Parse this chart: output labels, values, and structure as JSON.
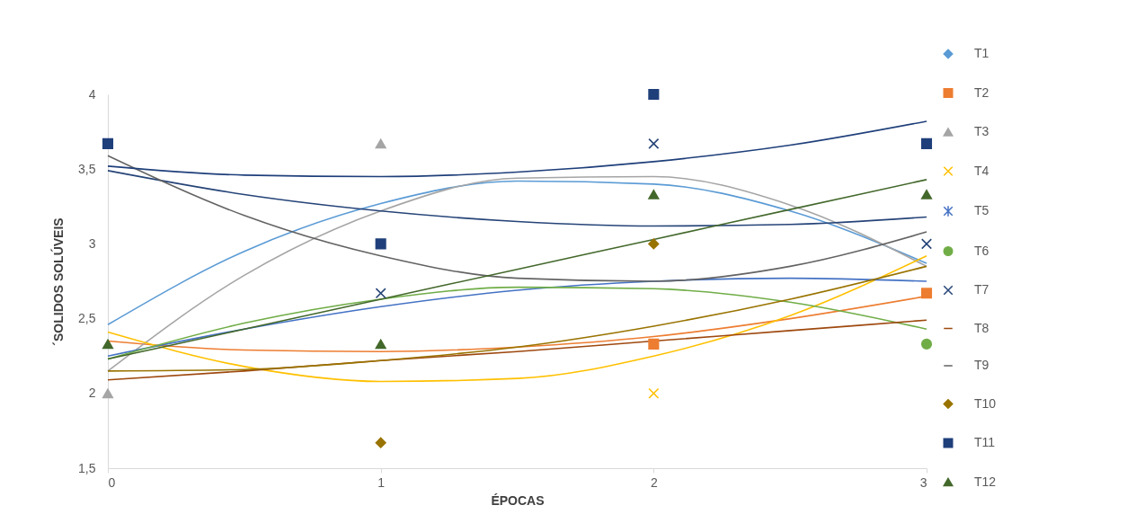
{
  "chart_data": {
    "type": "scatter",
    "xlabel": "ÉPOCAS",
    "ylabel": "´SOLIDOS SOLÚVEIS",
    "legend": "right",
    "grid": false,
    "xlim": [
      0,
      3
    ],
    "xticks": [
      0,
      1,
      2,
      3
    ],
    "x": [
      0,
      1,
      2,
      3
    ],
    "ylim": [
      1.5,
      4
    ],
    "yticks": [
      {
        "value": 1.5,
        "label": "1,5"
      },
      {
        "value": 2,
        "label": "2"
      },
      {
        "value": 2.5,
        "label": "2,5"
      },
      {
        "value": 3,
        "label": "3"
      },
      {
        "value": 3.5,
        "label": "3,5"
      },
      {
        "value": 4,
        "label": "4"
      }
    ],
    "series": [
      {
        "type": "line",
        "color": "#5b9bd5",
        "x": [
          0,
          0.5,
          1,
          1.5,
          2,
          2.5,
          3
        ],
        "values": [
          2.46,
          2.95,
          3.27,
          3.42,
          3.4,
          3.22,
          2.87
        ]
      },
      {
        "type": "line",
        "color": "#ed7d31",
        "x": [
          0,
          0.5,
          1,
          1.5,
          2,
          2.5,
          3
        ],
        "values": [
          2.35,
          2.29,
          2.28,
          2.31,
          2.38,
          2.5,
          2.65
        ]
      },
      {
        "type": "line",
        "color": "#a5a5a5",
        "x": [
          0,
          0.5,
          1,
          1.5,
          2,
          2.5,
          3
        ],
        "values": [
          2.15,
          2.79,
          3.22,
          3.44,
          3.45,
          3.26,
          2.85
        ]
      },
      {
        "type": "line",
        "color": "#ffc000",
        "x": [
          0,
          0.5,
          1,
          1.5,
          2,
          2.5,
          3
        ],
        "values": [
          2.41,
          2.18,
          2.08,
          2.1,
          2.25,
          2.52,
          2.92
        ]
      },
      {
        "type": "line",
        "color": "#4472c4",
        "x": [
          0,
          0.5,
          1,
          1.5,
          2,
          2.5,
          3
        ],
        "values": [
          2.25,
          2.43,
          2.58,
          2.69,
          2.75,
          2.77,
          2.75
        ]
      },
      {
        "type": "line",
        "color": "#70ad47",
        "x": [
          0,
          0.5,
          1,
          1.5,
          2,
          2.5,
          3
        ],
        "values": [
          2.23,
          2.47,
          2.63,
          2.71,
          2.7,
          2.61,
          2.43
        ]
      },
      {
        "type": "line",
        "color": "#264478",
        "x": [
          0,
          0.5,
          1,
          1.5,
          2,
          2.5,
          3
        ],
        "values": [
          3.49,
          3.33,
          3.22,
          3.15,
          3.12,
          3.13,
          3.18
        ]
      },
      {
        "type": "line",
        "color": "#9e480e",
        "x": [
          0,
          0.5,
          1,
          1.5,
          2,
          2.5,
          3
        ],
        "values": [
          2.09,
          2.15,
          2.22,
          2.28,
          2.35,
          2.42,
          2.49
        ]
      },
      {
        "type": "line",
        "color": "#636363",
        "x": [
          0,
          0.5,
          1,
          1.5,
          2,
          2.5,
          3
        ],
        "values": [
          3.59,
          3.19,
          2.92,
          2.77,
          2.75,
          2.85,
          3.08
        ]
      },
      {
        "type": "line",
        "color": "#997300",
        "x": [
          0,
          0.5,
          1,
          1.5,
          2,
          2.5,
          3
        ],
        "values": [
          2.15,
          2.16,
          2.22,
          2.31,
          2.45,
          2.63,
          2.85
        ]
      },
      {
        "type": "line",
        "color": "#1f3f7a",
        "x": [
          0,
          0.5,
          1,
          1.5,
          2,
          2.5,
          3
        ],
        "values": [
          3.52,
          3.46,
          3.45,
          3.48,
          3.55,
          3.66,
          3.82
        ]
      },
      {
        "type": "line",
        "color": "#43682b",
        "x": [
          0,
          0.5,
          1,
          1.5,
          2,
          2.5,
          3
        ],
        "values": [
          2.23,
          2.43,
          2.63,
          2.83,
          3.03,
          3.23,
          3.43
        ]
      },
      {
        "name": "T1",
        "color": "#5b9bd5",
        "marker": "diamond",
        "values": [
          null,
          null,
          null,
          null
        ]
      },
      {
        "name": "T2",
        "color": "#ed7d31",
        "marker": "square",
        "values": [
          null,
          null,
          2.33,
          2.67
        ]
      },
      {
        "name": "T3",
        "color": "#a5a5a5",
        "marker": "triangle",
        "values": [
          2,
          3.67,
          null,
          null
        ]
      },
      {
        "name": "T4",
        "color": "#ffc000",
        "marker": "cross",
        "values": [
          null,
          null,
          2,
          null
        ]
      },
      {
        "name": "T5",
        "color": "#4472c4",
        "marker": "star",
        "values": [
          null,
          null,
          null,
          null
        ]
      },
      {
        "name": "T6",
        "color": "#70ad47",
        "marker": "circle",
        "values": [
          null,
          null,
          null,
          2.33
        ]
      },
      {
        "name": "T7",
        "color": "#264478",
        "marker": "cross",
        "values": [
          null,
          2.67,
          3.67,
          3
        ]
      },
      {
        "name": "T8",
        "color": "#9e480e",
        "values": [
          null,
          null,
          null,
          null
        ]
      },
      {
        "name": "T9",
        "color": "#636363",
        "values": [
          null,
          null,
          null,
          null
        ]
      },
      {
        "name": "T10",
        "color": "#997300",
        "marker": "diamond",
        "values": [
          null,
          1.67,
          3,
          null
        ]
      },
      {
        "name": "T11",
        "color": "#1f3f7a",
        "marker": "square",
        "values": [
          3.67,
          3,
          4,
          3.67
        ]
      },
      {
        "name": "T12",
        "color": "#43682b",
        "marker": "triangle",
        "values": [
          2.33,
          2.33,
          3.33,
          3.33
        ]
      }
    ]
  }
}
